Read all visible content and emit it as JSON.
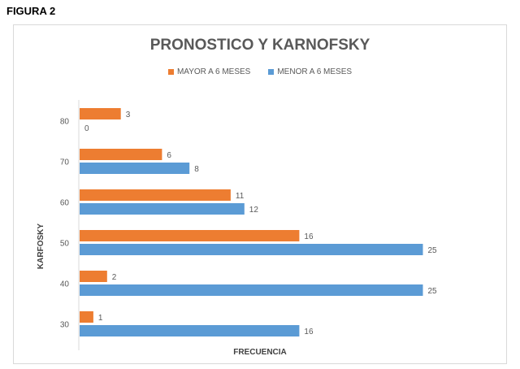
{
  "figure_label": "FIGURA 2",
  "chart_data": {
    "type": "bar",
    "orientation": "horizontal",
    "title": "PRONOSTICO  Y KARNOFSKY",
    "xlabel": "FRECUENCIA",
    "ylabel": "KARFOSKY",
    "categories": [
      "80",
      "70",
      "60",
      "50",
      "40",
      "30"
    ],
    "xlim": [
      0,
      25
    ],
    "grid": false,
    "legend_position": "top",
    "data_labels": true,
    "series": [
      {
        "name": "MAYOR A 6 MESES",
        "color": "#ED7D31",
        "values": [
          3,
          6,
          11,
          16,
          2,
          1
        ]
      },
      {
        "name": "MENOR A 6 MESES",
        "color": "#5B9BD5",
        "values": [
          0,
          8,
          12,
          25,
          25,
          16
        ]
      }
    ]
  }
}
